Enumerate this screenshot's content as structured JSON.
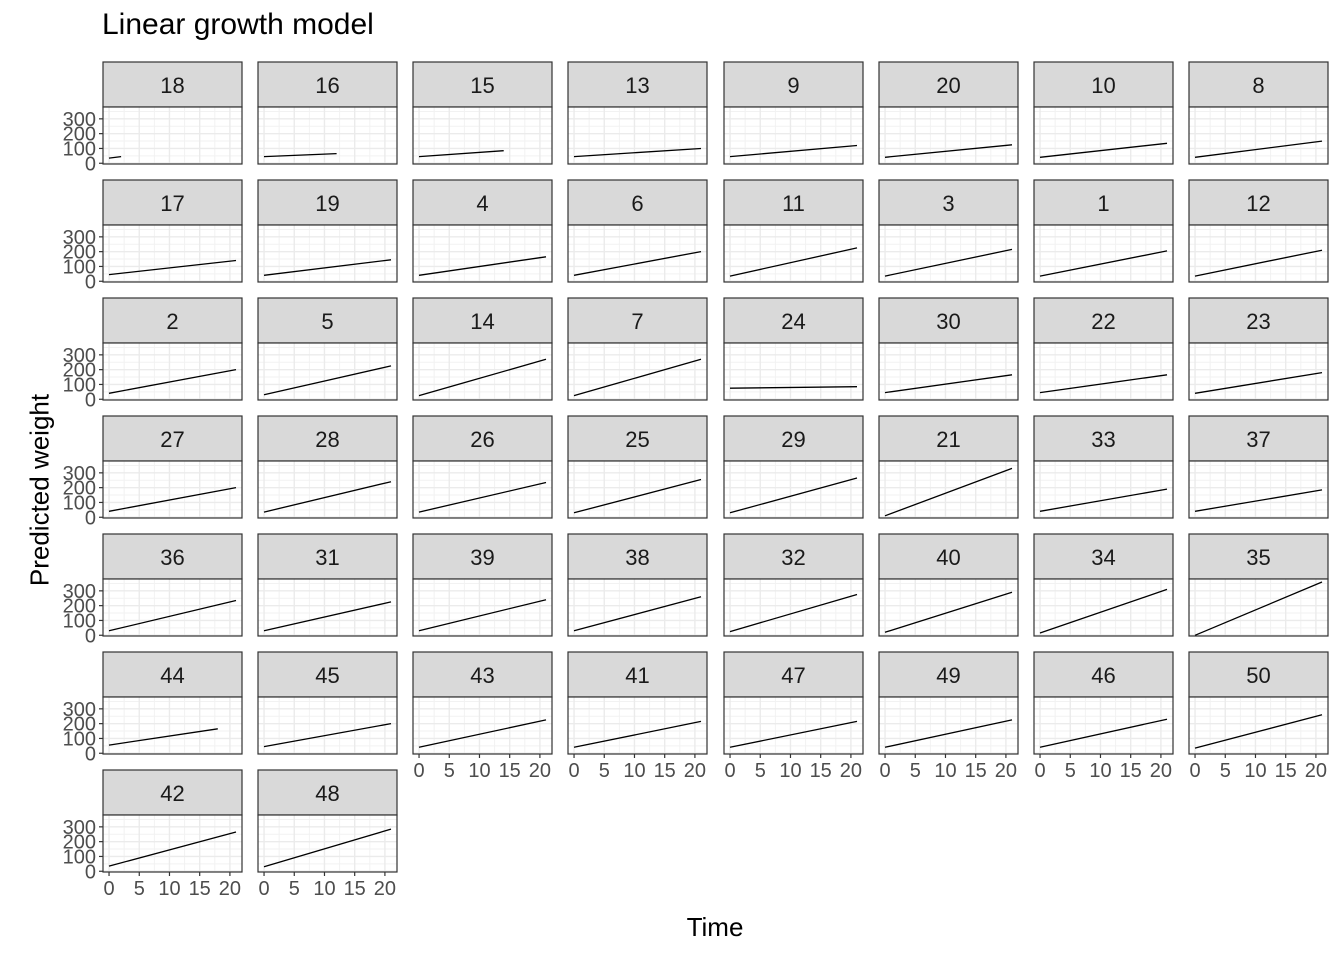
{
  "chart_data": {
    "type": "line",
    "title": "Linear growth model",
    "xlabel": "Time",
    "ylabel": "Predicted weight",
    "xlim": [
      -1,
      22
    ],
    "ylim": [
      -5,
      380
    ],
    "x_ticks": [
      0,
      5,
      10,
      15,
      20
    ],
    "y_ticks": [
      0,
      100,
      200,
      300
    ],
    "grid": true,
    "facet_columns": 8,
    "panels": [
      {
        "label": "18",
        "x": [
          0,
          2
        ],
        "y": [
          35,
          45
        ]
      },
      {
        "label": "16",
        "x": [
          0,
          12
        ],
        "y": [
          45,
          65
        ]
      },
      {
        "label": "15",
        "x": [
          0,
          14
        ],
        "y": [
          45,
          85
        ]
      },
      {
        "label": "13",
        "x": [
          0,
          21
        ],
        "y": [
          45,
          100
        ]
      },
      {
        "label": "9",
        "x": [
          0,
          21
        ],
        "y": [
          45,
          120
        ]
      },
      {
        "label": "20",
        "x": [
          0,
          21
        ],
        "y": [
          40,
          125
        ]
      },
      {
        "label": "10",
        "x": [
          0,
          21
        ],
        "y": [
          40,
          135
        ]
      },
      {
        "label": "8",
        "x": [
          0,
          21
        ],
        "y": [
          40,
          150
        ]
      },
      {
        "label": "17",
        "x": [
          0,
          21
        ],
        "y": [
          45,
          140
        ]
      },
      {
        "label": "19",
        "x": [
          0,
          21
        ],
        "y": [
          40,
          145
        ]
      },
      {
        "label": "4",
        "x": [
          0,
          21
        ],
        "y": [
          40,
          165
        ]
      },
      {
        "label": "6",
        "x": [
          0,
          21
        ],
        "y": [
          40,
          200
        ]
      },
      {
        "label": "11",
        "x": [
          0,
          21
        ],
        "y": [
          35,
          225
        ]
      },
      {
        "label": "3",
        "x": [
          0,
          21
        ],
        "y": [
          35,
          215
        ]
      },
      {
        "label": "1",
        "x": [
          0,
          21
        ],
        "y": [
          35,
          205
        ]
      },
      {
        "label": "12",
        "x": [
          0,
          21
        ],
        "y": [
          35,
          210
        ]
      },
      {
        "label": "2",
        "x": [
          0,
          21
        ],
        "y": [
          40,
          200
        ]
      },
      {
        "label": "5",
        "x": [
          0,
          21
        ],
        "y": [
          30,
          225
        ]
      },
      {
        "label": "14",
        "x": [
          0,
          21
        ],
        "y": [
          25,
          270
        ]
      },
      {
        "label": "7",
        "x": [
          0,
          21
        ],
        "y": [
          25,
          270
        ]
      },
      {
        "label": "24",
        "x": [
          0,
          21
        ],
        "y": [
          75,
          85
        ]
      },
      {
        "label": "30",
        "x": [
          0,
          21
        ],
        "y": [
          45,
          165
        ]
      },
      {
        "label": "22",
        "x": [
          0,
          21
        ],
        "y": [
          45,
          165
        ]
      },
      {
        "label": "23",
        "x": [
          0,
          21
        ],
        "y": [
          40,
          180
        ]
      },
      {
        "label": "27",
        "x": [
          0,
          21
        ],
        "y": [
          40,
          200
        ]
      },
      {
        "label": "28",
        "x": [
          0,
          21
        ],
        "y": [
          35,
          240
        ]
      },
      {
        "label": "26",
        "x": [
          0,
          21
        ],
        "y": [
          35,
          235
        ]
      },
      {
        "label": "25",
        "x": [
          0,
          21
        ],
        "y": [
          30,
          255
        ]
      },
      {
        "label": "29",
        "x": [
          0,
          21
        ],
        "y": [
          30,
          265
        ]
      },
      {
        "label": "21",
        "x": [
          0,
          21
        ],
        "y": [
          10,
          330
        ]
      },
      {
        "label": "33",
        "x": [
          0,
          21
        ],
        "y": [
          40,
          190
        ]
      },
      {
        "label": "37",
        "x": [
          0,
          21
        ],
        "y": [
          40,
          185
        ]
      },
      {
        "label": "36",
        "x": [
          0,
          21
        ],
        "y": [
          30,
          235
        ]
      },
      {
        "label": "31",
        "x": [
          0,
          21
        ],
        "y": [
          30,
          225
        ]
      },
      {
        "label": "39",
        "x": [
          0,
          21
        ],
        "y": [
          30,
          240
        ]
      },
      {
        "label": "38",
        "x": [
          0,
          21
        ],
        "y": [
          30,
          260
        ]
      },
      {
        "label": "32",
        "x": [
          0,
          21
        ],
        "y": [
          25,
          275
        ]
      },
      {
        "label": "40",
        "x": [
          0,
          21
        ],
        "y": [
          20,
          290
        ]
      },
      {
        "label": "34",
        "x": [
          0,
          21
        ],
        "y": [
          15,
          310
        ]
      },
      {
        "label": "35",
        "x": [
          0,
          21
        ],
        "y": [
          0,
          360
        ]
      },
      {
        "label": "44",
        "x": [
          0,
          18
        ],
        "y": [
          55,
          165
        ]
      },
      {
        "label": "45",
        "x": [
          0,
          21
        ],
        "y": [
          45,
          200
        ]
      },
      {
        "label": "43",
        "x": [
          0,
          21
        ],
        "y": [
          40,
          225
        ]
      },
      {
        "label": "41",
        "x": [
          0,
          21
        ],
        "y": [
          40,
          215
        ]
      },
      {
        "label": "47",
        "x": [
          0,
          21
        ],
        "y": [
          40,
          215
        ]
      },
      {
        "label": "49",
        "x": [
          0,
          21
        ],
        "y": [
          40,
          225
        ]
      },
      {
        "label": "46",
        "x": [
          0,
          21
        ],
        "y": [
          40,
          230
        ]
      },
      {
        "label": "50",
        "x": [
          0,
          21
        ],
        "y": [
          35,
          260
        ]
      },
      {
        "label": "42",
        "x": [
          0,
          21
        ],
        "y": [
          35,
          265
        ]
      },
      {
        "label": "48",
        "x": [
          0,
          21
        ],
        "y": [
          30,
          285
        ]
      }
    ]
  }
}
